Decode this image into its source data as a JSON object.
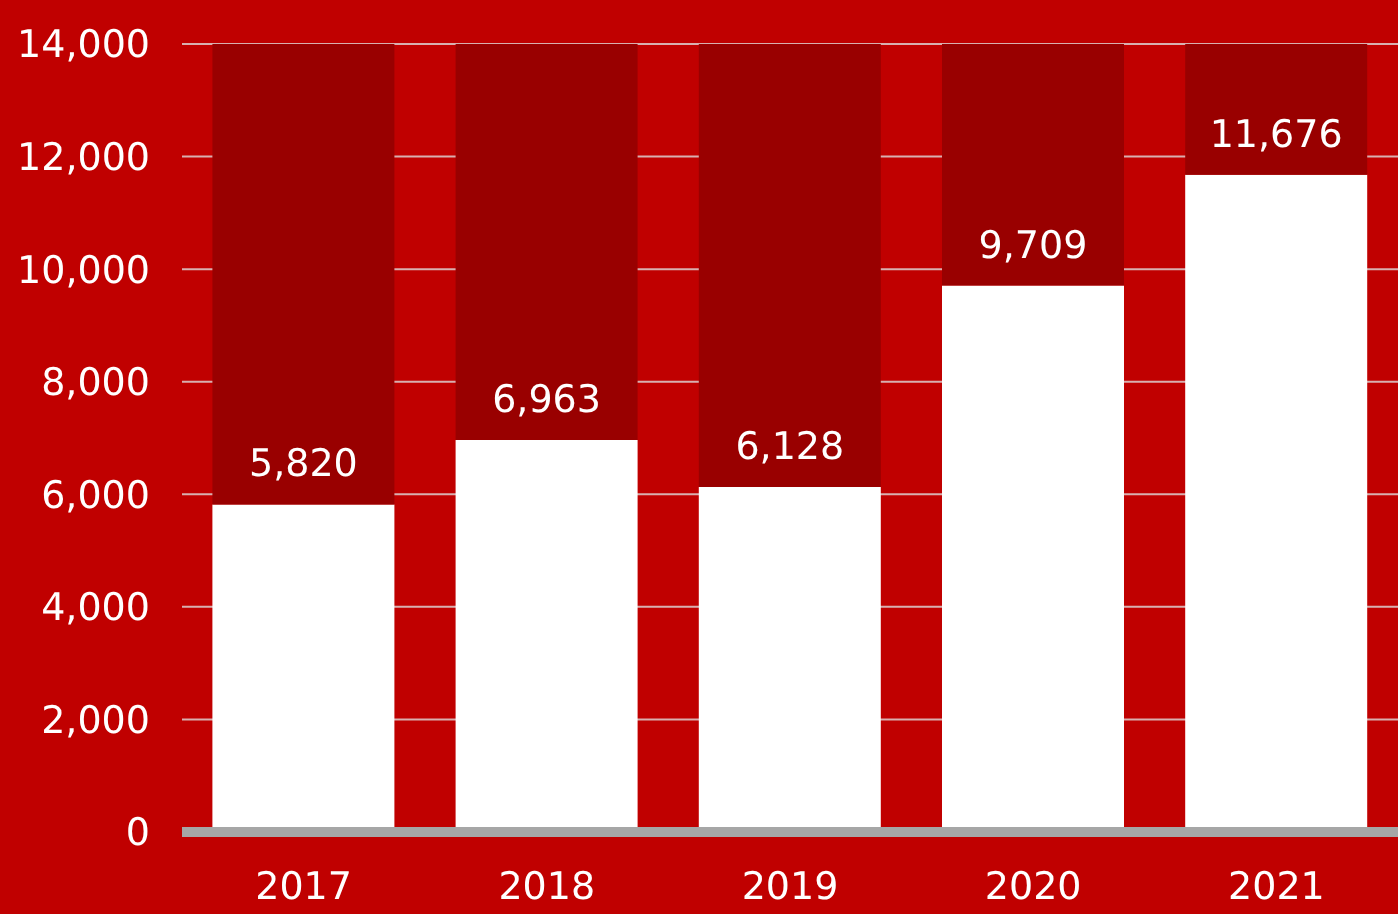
{
  "chart_data": {
    "type": "bar",
    "stacked": true,
    "categories": [
      "2017",
      "2018",
      "2019",
      "2020",
      "2021"
    ],
    "series": [
      {
        "color": "#ffffff",
        "values": [
          5820,
          6963,
          6128,
          9709,
          11676
        ],
        "value_labels": [
          "5,820",
          "6,963",
          "6,128",
          "9,709",
          "11,676"
        ]
      },
      {
        "color": "#990000",
        "values": [
          8180,
          7037,
          7872,
          4291,
          2324
        ]
      }
    ],
    "ylim": [
      0,
      14000
    ],
    "yticks": [
      {
        "value": 0,
        "label": "0"
      },
      {
        "value": 2000,
        "label": "2,000"
      },
      {
        "value": 4000,
        "label": "4,000"
      },
      {
        "value": 6000,
        "label": "6,000"
      },
      {
        "value": 8000,
        "label": "8,000"
      },
      {
        "value": 10000,
        "label": "10,000"
      },
      {
        "value": 12000,
        "label": "12,000"
      },
      {
        "value": 14000,
        "label": "14,000"
      }
    ],
    "grid": "y",
    "legend": false
  }
}
